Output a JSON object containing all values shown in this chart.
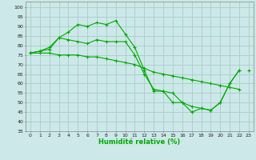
{
  "title": "",
  "xlabel": "Humidité relative (%)",
  "ylabel": "",
  "background_color": "#cce8e8",
  "grid_color": "#aacccc",
  "line_color": "#00aa00",
  "marker": "+",
  "xlim": [
    -0.5,
    23.5
  ],
  "ylim": [
    35,
    103
  ],
  "yticks": [
    35,
    40,
    45,
    50,
    55,
    60,
    65,
    70,
    75,
    80,
    85,
    90,
    95,
    100
  ],
  "xticks": [
    0,
    1,
    2,
    3,
    4,
    5,
    6,
    7,
    8,
    9,
    10,
    11,
    12,
    13,
    14,
    15,
    16,
    17,
    18,
    19,
    20,
    21,
    22,
    23
  ],
  "series": [
    [
      76,
      77,
      78,
      84,
      87,
      91,
      90,
      92,
      91,
      93,
      86,
      79,
      67,
      56,
      56,
      50,
      50,
      45,
      47,
      46,
      50,
      60,
      67,
      null
    ],
    [
      76,
      77,
      79,
      84,
      83,
      82,
      81,
      83,
      82,
      82,
      82,
      75,
      65,
      57,
      56,
      55,
      50,
      48,
      47,
      46,
      50,
      60,
      67,
      null
    ],
    [
      76,
      76,
      76,
      75,
      75,
      75,
      74,
      74,
      73,
      72,
      71,
      70,
      68,
      66,
      65,
      64,
      63,
      62,
      61,
      60,
      59,
      58,
      57,
      null
    ],
    [
      null,
      null,
      null,
      null,
      null,
      null,
      null,
      null,
      null,
      null,
      null,
      null,
      null,
      null,
      null,
      null,
      null,
      null,
      null,
      null,
      null,
      null,
      null,
      67
    ]
  ],
  "xlabel_fontsize": 6,
  "tick_fontsize": 4.5
}
